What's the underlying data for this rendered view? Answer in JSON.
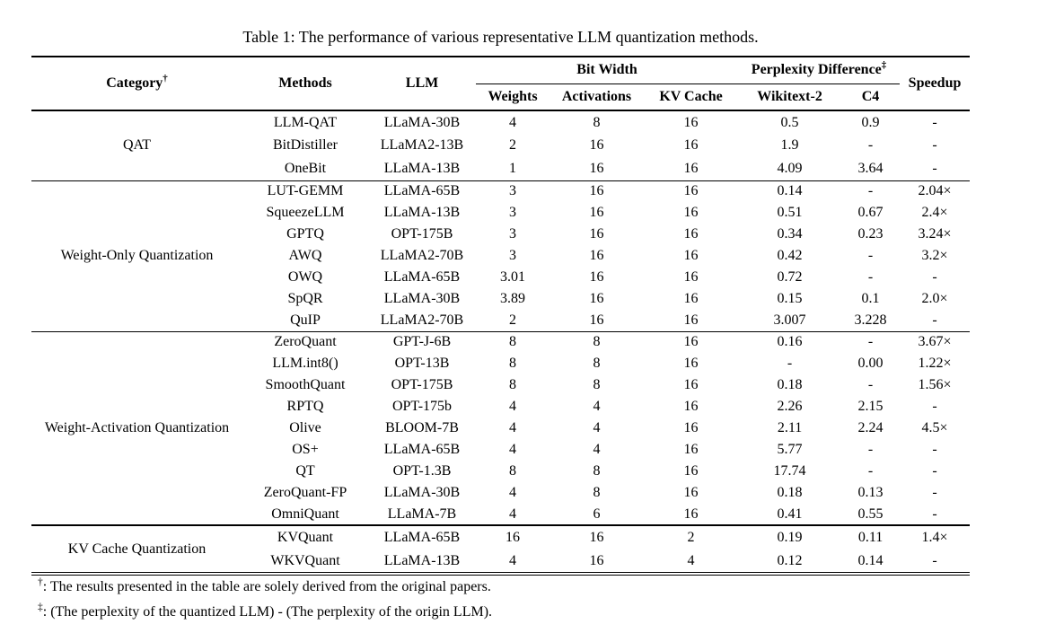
{
  "caption": "Table 1: The performance of various representative LLM quantization methods.",
  "table": {
    "header": {
      "category": "Category",
      "category_sup": "†",
      "methods": "Methods",
      "llm": "LLM",
      "bit_width": "Bit Width",
      "bit_width_cols": [
        "Weights",
        "Activations",
        "KV Cache"
      ],
      "perplexity": "Perplexity Difference",
      "perplexity_sup": "‡",
      "perplexity_cols": [
        "Wikitext-2",
        "C4"
      ],
      "speedup": "Speedup"
    },
    "sections": [
      {
        "category": "QAT",
        "rows": [
          {
            "method": "LLM-QAT",
            "llm": "LLaMA-30B",
            "weights": "4",
            "activations": "8",
            "kv_cache": "16",
            "wikitext2": "0.5",
            "c4": "0.9",
            "speedup": "-"
          },
          {
            "method": "BitDistiller",
            "llm": "LLaMA2-13B",
            "weights": "2",
            "activations": "16",
            "kv_cache": "16",
            "wikitext2": "1.9",
            "c4": "-",
            "speedup": "-"
          },
          {
            "method": "OneBit",
            "llm": "LLaMA-13B",
            "weights": "1",
            "activations": "16",
            "kv_cache": "16",
            "wikitext2": "4.09",
            "c4": "3.64",
            "speedup": "-"
          }
        ]
      },
      {
        "category": "Weight-Only Quantization",
        "rows": [
          {
            "method": "LUT-GEMM",
            "llm": "LLaMA-65B",
            "weights": "3",
            "activations": "16",
            "kv_cache": "16",
            "wikitext2": "0.14",
            "c4": "-",
            "speedup": "2.04×"
          },
          {
            "method": "SqueezeLLM",
            "llm": "LLaMA-13B",
            "weights": "3",
            "activations": "16",
            "kv_cache": "16",
            "wikitext2": "0.51",
            "c4": "0.67",
            "speedup": "2.4×"
          },
          {
            "method": "GPTQ",
            "llm": "OPT-175B",
            "weights": "3",
            "activations": "16",
            "kv_cache": "16",
            "wikitext2": "0.34",
            "c4": "0.23",
            "speedup": "3.24×"
          },
          {
            "method": "AWQ",
            "llm": "LLaMA2-70B",
            "weights": "3",
            "activations": "16",
            "kv_cache": "16",
            "wikitext2": "0.42",
            "c4": "-",
            "speedup": "3.2×"
          },
          {
            "method": "OWQ",
            "llm": "LLaMA-65B",
            "weights": "3.01",
            "activations": "16",
            "kv_cache": "16",
            "wikitext2": "0.72",
            "c4": "-",
            "speedup": "-"
          },
          {
            "method": "SpQR",
            "llm": "LLaMA-30B",
            "weights": "3.89",
            "activations": "16",
            "kv_cache": "16",
            "wikitext2": "0.15",
            "c4": "0.1",
            "speedup": "2.0×"
          },
          {
            "method": "QuIP",
            "llm": "LLaMA2-70B",
            "weights": "2",
            "activations": "16",
            "kv_cache": "16",
            "wikitext2": "3.007",
            "c4": "3.228",
            "speedup": "-"
          }
        ]
      },
      {
        "category": "Weight-Activation Quantization",
        "rows": [
          {
            "method": "ZeroQuant",
            "llm": "GPT-J-6B",
            "weights": "8",
            "activations": "8",
            "kv_cache": "16",
            "wikitext2": "0.16",
            "c4": "-",
            "speedup": "3.67×"
          },
          {
            "method": "LLM.int8()",
            "llm": "OPT-13B",
            "weights": "8",
            "activations": "8",
            "kv_cache": "16",
            "wikitext2": "-",
            "c4": "0.00",
            "speedup": "1.22×"
          },
          {
            "method": "SmoothQuant",
            "llm": "OPT-175B",
            "weights": "8",
            "activations": "8",
            "kv_cache": "16",
            "wikitext2": "0.18",
            "c4": "-",
            "speedup": "1.56×"
          },
          {
            "method": "RPTQ",
            "llm": "OPT-175b",
            "weights": "4",
            "activations": "4",
            "kv_cache": "16",
            "wikitext2": "2.26",
            "c4": "2.15",
            "speedup": "-"
          },
          {
            "method": "Olive",
            "llm": "BLOOM-7B",
            "weights": "4",
            "activations": "4",
            "kv_cache": "16",
            "wikitext2": "2.11",
            "c4": "2.24",
            "speedup": "4.5×"
          },
          {
            "method": "OS+",
            "llm": "LLaMA-65B",
            "weights": "4",
            "activations": "4",
            "kv_cache": "16",
            "wikitext2": "5.77",
            "c4": "-",
            "speedup": "-"
          },
          {
            "method": "QT",
            "llm": "OPT-1.3B",
            "weights": "8",
            "activations": "8",
            "kv_cache": "16",
            "wikitext2": "17.74",
            "c4": "-",
            "speedup": "-"
          },
          {
            "method": "ZeroQuant-FP",
            "llm": "LLaMA-30B",
            "weights": "4",
            "activations": "8",
            "kv_cache": "16",
            "wikitext2": "0.18",
            "c4": "0.13",
            "speedup": "-"
          },
          {
            "method": "OmniQuant",
            "llm": "LLaMA-7B",
            "weights": "4",
            "activations": "6",
            "kv_cache": "16",
            "wikitext2": "0.41",
            "c4": "0.55",
            "speedup": "-"
          }
        ]
      },
      {
        "category": "KV Cache Quantization",
        "rows": [
          {
            "method": "KVQuant",
            "llm": "LLaMA-65B",
            "weights": "16",
            "activations": "16",
            "kv_cache": "2",
            "wikitext2": "0.19",
            "c4": "0.11",
            "speedup": "1.4×"
          },
          {
            "method": "WKVQuant",
            "llm": "LLaMA-13B",
            "weights": "4",
            "activations": "16",
            "kv_cache": "4",
            "wikitext2": "0.12",
            "c4": "0.14",
            "speedup": "-"
          }
        ]
      }
    ]
  },
  "footnotes": [
    {
      "symbol": "†",
      "text": ": The results presented in the table are solely derived from the original papers."
    },
    {
      "symbol": "‡",
      "text": ": (The perplexity of the quantized LLM) - (The perplexity of the origin LLM)."
    }
  ]
}
